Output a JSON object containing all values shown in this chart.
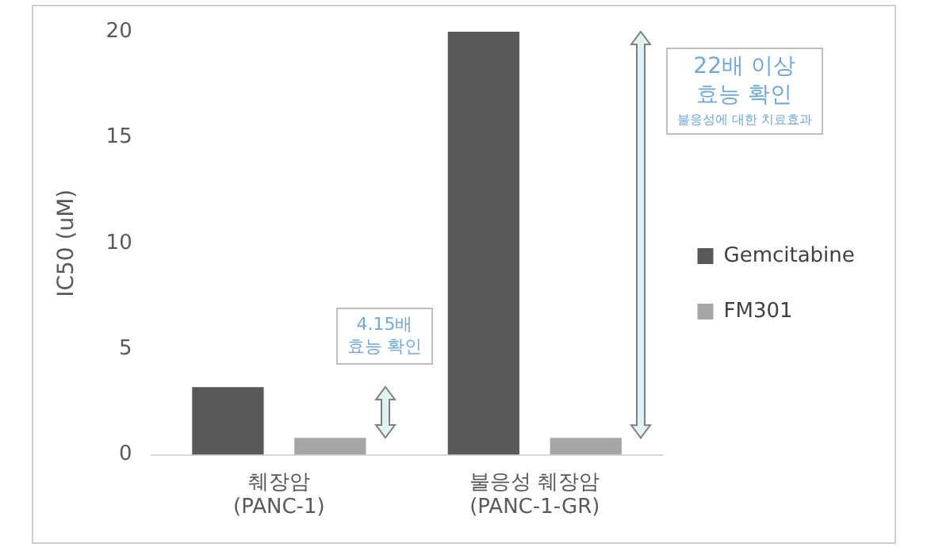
{
  "chart_data": {
    "type": "bar",
    "ylabel": "IC50 (uM)",
    "categories": [
      "췌장암\n(PANC-1)",
      "불응성 췌장암\n(PANC-1-GR)"
    ],
    "series": [
      {
        "name": "Gemcitabine",
        "color": "#595959",
        "values": [
          3.2,
          20
        ]
      },
      {
        "name": "FM301",
        "color": "#a6a6a6",
        "values": [
          0.8,
          0.8
        ]
      }
    ],
    "ylim": [
      0,
      20
    ],
    "yticks": [
      0,
      5,
      10,
      15,
      20
    ],
    "grid": false,
    "legend": "right",
    "annotations": [
      "4.15배\n효능 확인",
      "22배 이상\n효능 확인",
      "불응성에 대한 치료효과"
    ]
  }
}
